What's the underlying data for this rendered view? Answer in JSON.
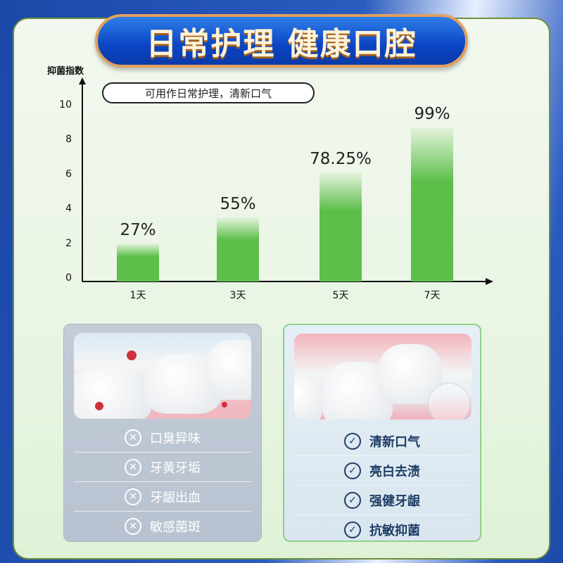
{
  "title": "日常护理 健康口腔",
  "note": "可用作日常护理，清新口气",
  "chart_data": {
    "type": "bar",
    "ylabel": "抑菌指数",
    "categories": [
      "1天",
      "3天",
      "5天",
      "7天"
    ],
    "values": [
      2.2,
      3.7,
      6.3,
      8.9
    ],
    "data_labels": [
      "27%",
      "55%",
      "78.25%",
      "99%"
    ],
    "yticks": [
      0,
      2,
      4,
      6,
      8,
      10
    ],
    "ylim": [
      0,
      11
    ],
    "bar_color": "#5cbf4a",
    "grid": false
  },
  "bad_card": {
    "icon": "x-circle-icon",
    "items": [
      "口臭异味",
      "牙黄牙垢",
      "牙龈出血",
      "敏感菌斑"
    ]
  },
  "good_card": {
    "icon": "check-circle-icon",
    "items": [
      "清新口气",
      "亮白去渍",
      "强健牙龈",
      "抗敏抑菌"
    ]
  }
}
